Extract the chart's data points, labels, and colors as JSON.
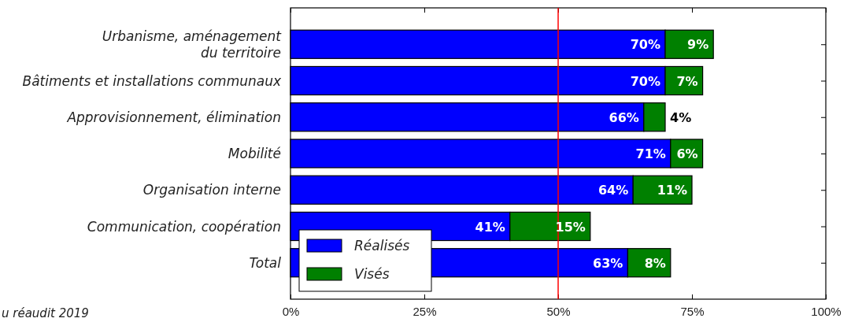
{
  "chart_data": {
    "type": "bar",
    "orientation": "horizontal",
    "stacked": true,
    "categories": [
      "Urbanisme, aménagement\ndu territoire",
      "Bâtiments et installations communaux",
      "Approvisionnement, élimination",
      "Mobilité",
      "Organisation interne",
      "Communication, coopération",
      "Total"
    ],
    "series": [
      {
        "name": "Réalisés",
        "color": "#0000ff",
        "values": [
          70,
          70,
          66,
          71,
          64,
          41,
          63
        ],
        "value_labels": [
          "70%",
          "70%",
          "66%",
          "71%",
          "64%",
          "41%",
          "63%"
        ]
      },
      {
        "name": "Visés",
        "color": "#008000",
        "values": [
          9,
          7,
          4,
          6,
          11,
          15,
          8
        ],
        "value_labels": [
          "9%",
          "7%",
          "4%",
          "6%",
          "11%",
          "15%",
          "8%"
        ]
      }
    ],
    "xlim": [
      0,
      100
    ],
    "xticks": [
      {
        "value": 0,
        "label": "0%"
      },
      {
        "value": 25,
        "label": "25%"
      },
      {
        "value": 50,
        "label": "50%"
      },
      {
        "value": 75,
        "label": "75%"
      },
      {
        "value": 100,
        "label": "100%"
      }
    ],
    "ref_lines": [
      {
        "axis": "x",
        "value": 50,
        "color": "#ff0000"
      }
    ],
    "legend": "bottom left",
    "annotations": [
      "u réaudit 2019"
    ]
  }
}
